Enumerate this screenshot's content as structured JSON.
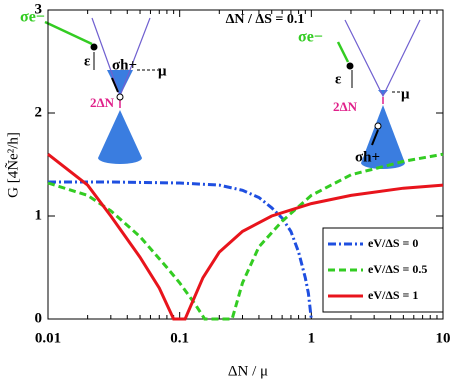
{
  "chart_data": {
    "type": "line",
    "annotations": [
      "ΔN / ΔS = 0.1",
      "σe−",
      "ε",
      "σh+",
      "μ",
      "2ΔN",
      "σe−",
      "ε",
      "μ",
      "2ΔN",
      "σh+"
    ],
    "x_label": "ΔN / μ",
    "y_label": "G [4Ñe²/h]",
    "log_x": true,
    "xlim": [
      0.01,
      10
    ],
    "xticks": [
      0.01,
      0.1,
      1,
      10
    ],
    "ylim": [
      0,
      3
    ],
    "yticks": [
      0,
      1,
      2,
      3
    ],
    "legend": "lower right",
    "series": [
      {
        "name": "eV/ΔS = 0",
        "color": "#1f4fe0",
        "dash": "dashdot",
        "x": [
          0.01,
          0.03,
          0.1,
          0.2,
          0.3,
          0.4,
          0.5,
          0.6,
          0.7,
          0.8,
          0.9,
          0.95,
          1.0
        ],
        "values": [
          1.33,
          1.33,
          1.32,
          1.3,
          1.25,
          1.18,
          1.08,
          0.98,
          0.85,
          0.65,
          0.4,
          0.25,
          0
        ]
      },
      {
        "name": "eV/ΔS = 0.5",
        "color": "#33cc22",
        "dash": "dashed",
        "x": [
          0.01,
          0.02,
          0.03,
          0.05,
          0.08,
          0.1,
          0.13,
          0.155,
          0.25,
          0.3,
          0.4,
          0.6,
          1,
          2,
          5,
          10
        ],
        "values": [
          1.32,
          1.2,
          1.05,
          0.8,
          0.5,
          0.35,
          0.15,
          0,
          0,
          0.35,
          0.7,
          0.95,
          1.2,
          1.4,
          1.53,
          1.6
        ]
      },
      {
        "name": "eV/ΔS = 1",
        "color": "#e8141c",
        "dash": "solid",
        "x": [
          0.01,
          0.02,
          0.03,
          0.05,
          0.07,
          0.09,
          0.11,
          0.15,
          0.2,
          0.3,
          0.5,
          1,
          2,
          5,
          10
        ],
        "values": [
          1.6,
          1.3,
          1.0,
          0.6,
          0.3,
          0,
          0,
          0.4,
          0.65,
          0.85,
          1.0,
          1.12,
          1.2,
          1.27,
          1.3
        ]
      }
    ]
  }
}
